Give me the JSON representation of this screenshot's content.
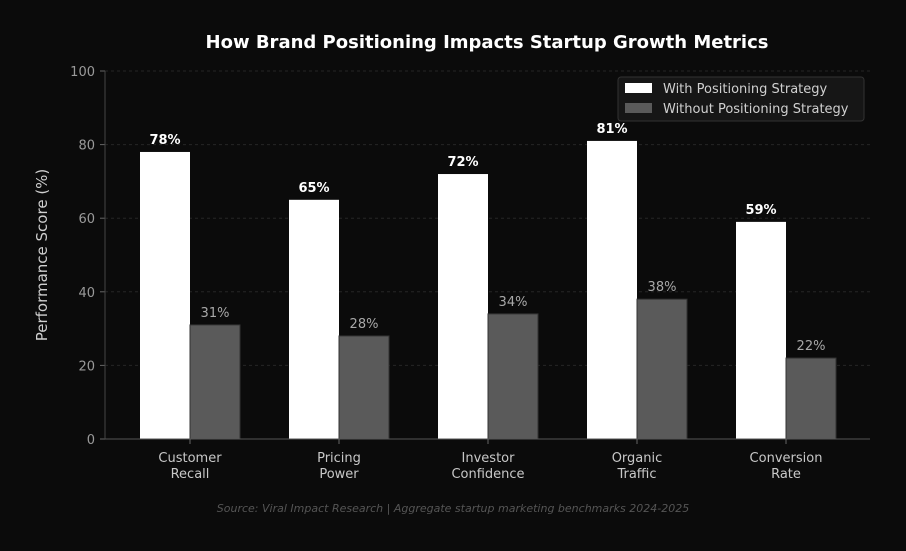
{
  "chart_data": {
    "type": "bar",
    "title": "How Brand Positioning Impacts Startup Growth Metrics",
    "xlabel": "",
    "ylabel": "Performance Score (%)",
    "ylim": [
      0,
      100
    ],
    "yticks": [
      0,
      20,
      40,
      60,
      80,
      100
    ],
    "grid": true,
    "legend_position": "top-right",
    "categories": [
      [
        "Customer",
        "Recall"
      ],
      [
        "Pricing",
        "Power"
      ],
      [
        "Investor",
        "Confidence"
      ],
      [
        "Organic",
        "Traffic"
      ],
      [
        "Conversion",
        "Rate"
      ]
    ],
    "series": [
      {
        "name": "With Positioning Strategy",
        "values": [
          78,
          65,
          72,
          81,
          59
        ],
        "labels": [
          "78%",
          "65%",
          "72%",
          "81%",
          "59%"
        ],
        "color": "#ffffff"
      },
      {
        "name": "Without Positioning Strategy",
        "values": [
          31,
          28,
          34,
          38,
          22
        ],
        "labels": [
          "31%",
          "28%",
          "34%",
          "38%",
          "22%"
        ],
        "color": "#5a5a5a"
      }
    ],
    "source": "Source: Viral Impact Research | Aggregate startup marketing benchmarks 2024-2025"
  }
}
